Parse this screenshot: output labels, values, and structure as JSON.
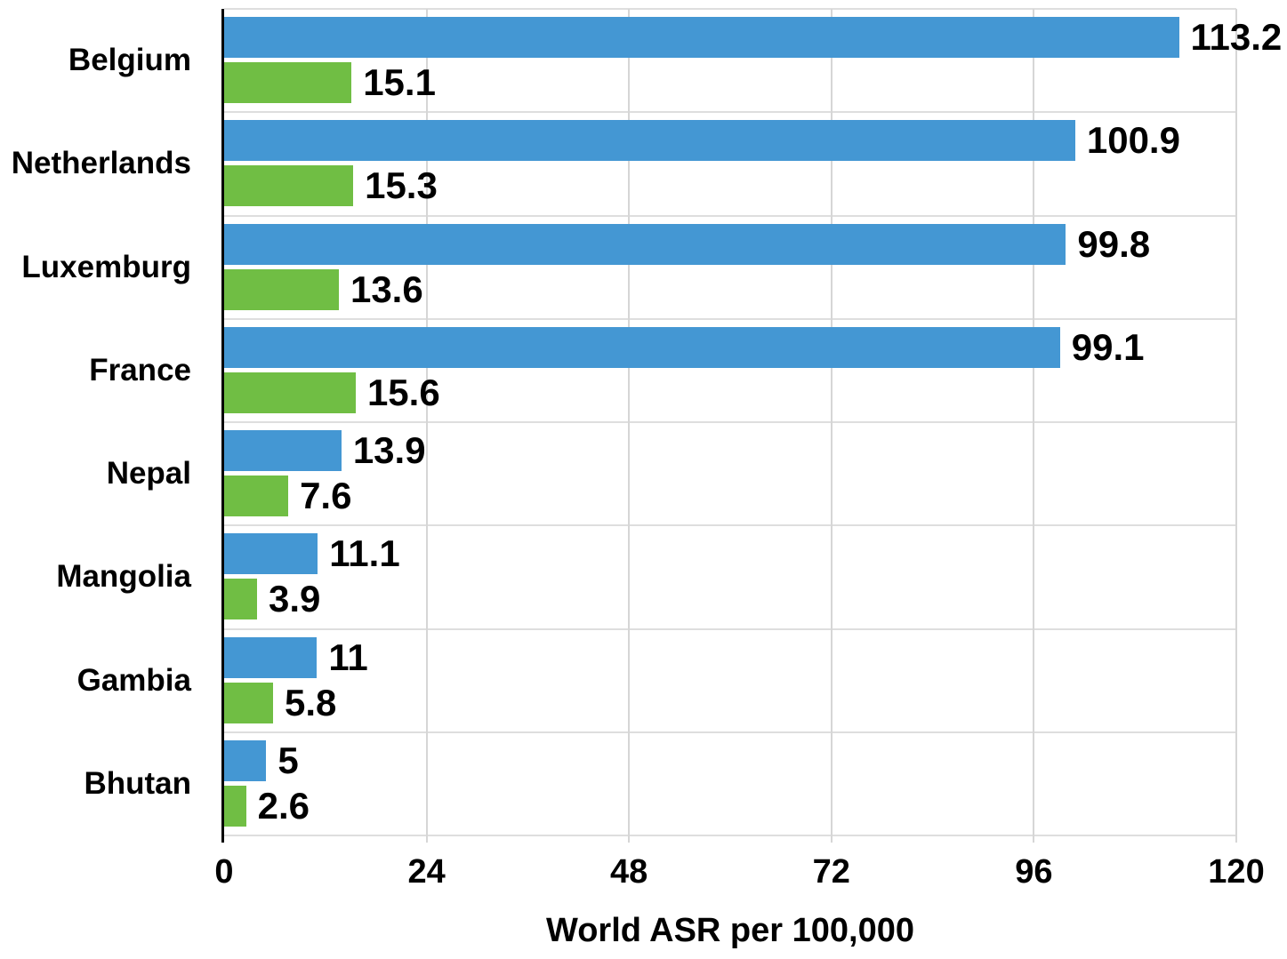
{
  "chart_data": {
    "type": "bar",
    "orientation": "horizontal",
    "title": "",
    "categories": [
      "Belgium",
      "Netherlands",
      "Luxemburg",
      "France",
      "Nepal",
      "Mangolia",
      "Gambia",
      "Bhutan"
    ],
    "series": [
      {
        "name": "blue",
        "color": "#4497D3",
        "values": [
          113.2,
          100.9,
          99.8,
          99.1,
          13.9,
          11.1,
          11,
          5
        ],
        "labels": [
          "113.2",
          "100.9",
          "99.8",
          "99.1",
          "13.9",
          "11.1",
          "11",
          "5"
        ]
      },
      {
        "name": "green",
        "color": "#70BE44",
        "values": [
          15.1,
          15.3,
          13.6,
          15.6,
          7.6,
          3.9,
          5.8,
          2.6
        ],
        "labels": [
          "15.1",
          "15.3",
          "13.6",
          "15.6",
          "7.6",
          "3.9",
          "5.8",
          "2.6"
        ]
      }
    ],
    "xlabel": "World ASR per 100,000",
    "ylabel": "",
    "xlim": [
      0,
      120
    ],
    "xticks": [
      0,
      24,
      48,
      72,
      96,
      120
    ],
    "xtick_labels": [
      "0",
      "24",
      "48",
      "72",
      "96",
      "120"
    ],
    "grid": {
      "vertical_value_gridlines": true,
      "horizontal_category_lines": true
    },
    "legend": "none",
    "data_labels": true
  },
  "colors": {
    "blue_bar": "#4497D3",
    "green_bar": "#70BE44",
    "value_gridline": "#D6D6D6",
    "category_gridline": "#DEDEDE",
    "axis_line": "#000000",
    "text": "#000000",
    "background": "#FFFFFF"
  }
}
